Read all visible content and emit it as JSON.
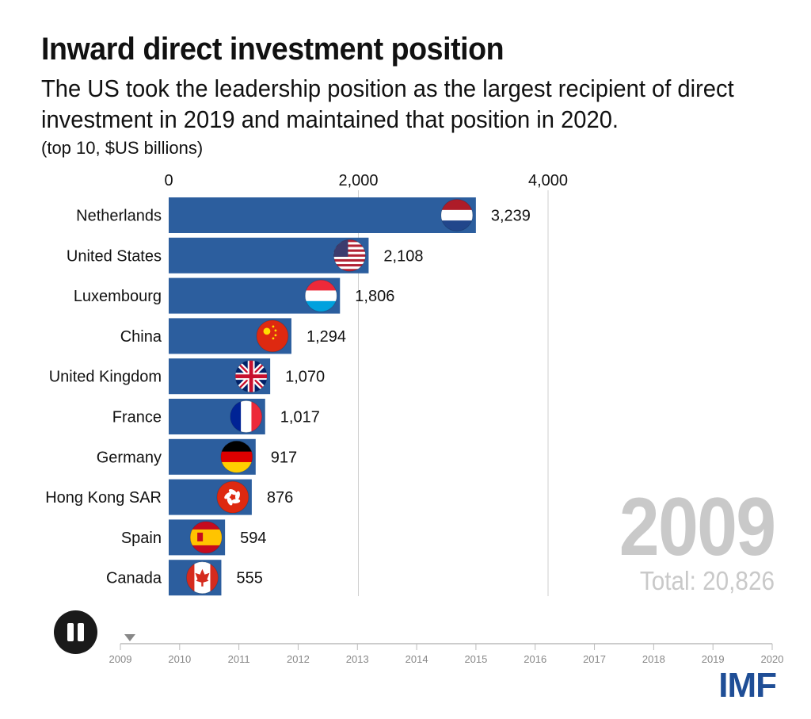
{
  "chart_data": {
    "type": "bar",
    "orientation": "horizontal",
    "title": "Inward direct investment position",
    "subtitle": "The US took the leadership position as the largest recipient of direct investment in 2019 and maintained that position in 2020.",
    "units": "(top 10, $US billions)",
    "x_ticks": [
      "0",
      "2,000",
      "4,000"
    ],
    "x_tick_values": [
      0,
      2000,
      4000
    ],
    "xlim": [
      0,
      4000
    ],
    "categories": [
      "Netherlands",
      "United States",
      "Luxembourg",
      "China",
      "United Kingdom",
      "France",
      "Germany",
      "Hong Kong SAR",
      "Spain",
      "Canada"
    ],
    "values": [
      3239,
      2108,
      1806,
      1294,
      1070,
      1017,
      917,
      876,
      594,
      555
    ],
    "value_labels": [
      "3,239",
      "2,108",
      "1,806",
      "1,294",
      "1,070",
      "1,017",
      "917",
      "876",
      "594",
      "555"
    ],
    "flag_icons": [
      "netherlands-flag-icon",
      "united-states-flag-icon",
      "luxembourg-flag-icon",
      "china-flag-icon",
      "united-kingdom-flag-icon",
      "france-flag-icon",
      "germany-flag-icon",
      "hong-kong-flag-icon",
      "spain-flag-icon",
      "canada-flag-icon"
    ],
    "bar_color": "#2c5e9e",
    "grid": true,
    "current_year": "2009",
    "total_label": "Total: 20,826"
  },
  "timeline": {
    "years": [
      "2009",
      "2010",
      "2011",
      "2012",
      "2013",
      "2014",
      "2015",
      "2016",
      "2017",
      "2018",
      "2019",
      "2020"
    ],
    "current_index": 0,
    "pause_icon": "pause-icon"
  },
  "logo": {
    "text": "IMF",
    "color": "#1f4e96"
  }
}
